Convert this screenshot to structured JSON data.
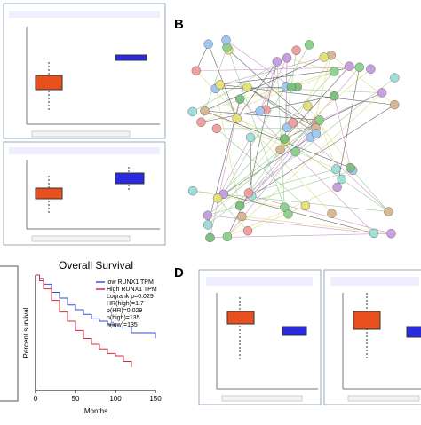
{
  "panel_b": {
    "label": "B"
  },
  "panel_d": {
    "label": "D"
  },
  "chart_data": {
    "type": "line",
    "title": "Overall Survival",
    "x_label": "Months",
    "y_label": "Percent survival",
    "xlim": [
      0,
      150
    ],
    "xticks": [
      0,
      50,
      100,
      150
    ],
    "ylim": [
      0,
      1
    ],
    "series": [
      {
        "name": "low RUNX1 TPM",
        "color": "#3a4fd6",
        "x": [
          0,
          5,
          10,
          20,
          30,
          40,
          50,
          60,
          70,
          80,
          90,
          100,
          120,
          150
        ],
        "values": [
          1,
          0.97,
          0.92,
          0.85,
          0.8,
          0.74,
          0.7,
          0.66,
          0.62,
          0.6,
          0.57,
          0.55,
          0.5,
          0.45
        ]
      },
      {
        "name": "High RUNX1 TPM",
        "color": "#d62b3a",
        "x": [
          0,
          5,
          10,
          20,
          30,
          40,
          50,
          60,
          70,
          80,
          90,
          100,
          110,
          120
        ],
        "values": [
          1,
          0.95,
          0.88,
          0.78,
          0.68,
          0.6,
          0.52,
          0.45,
          0.4,
          0.36,
          0.32,
          0.3,
          0.25,
          0.2
        ]
      }
    ],
    "annotations": [
      "Logrank p=0.029",
      "HR(high)=1.7",
      "p(HR)=0.029",
      "n(high)=135",
      "n(low)=135"
    ]
  }
}
